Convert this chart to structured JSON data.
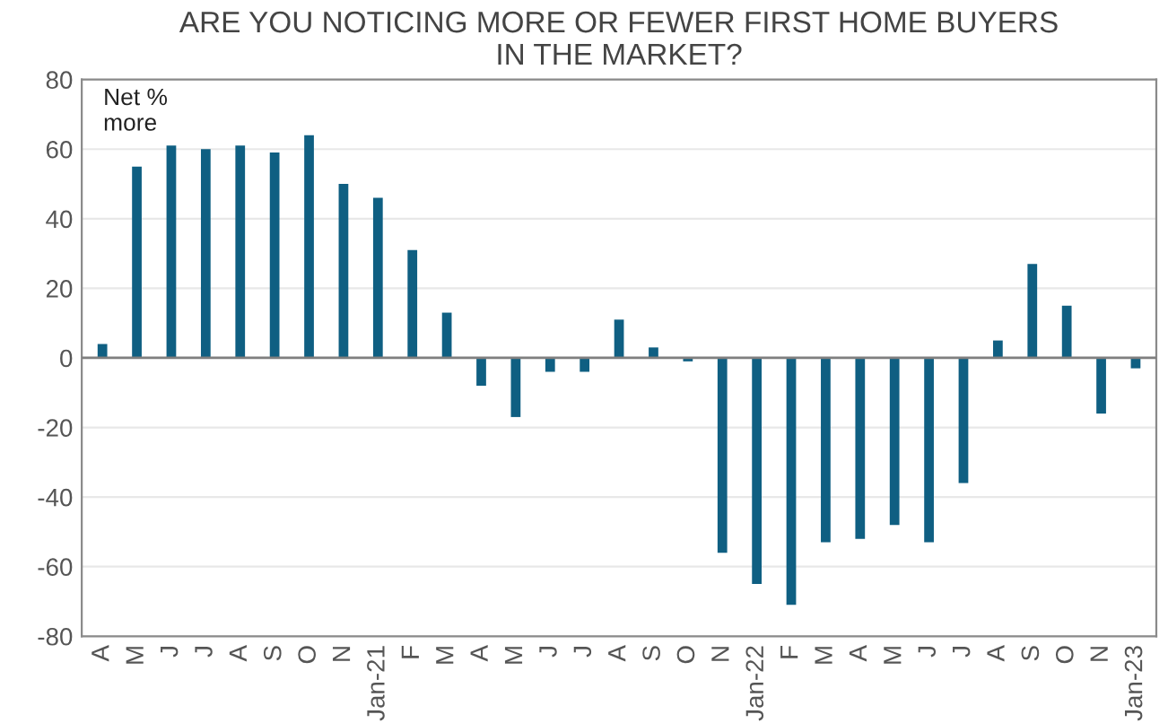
{
  "chart_data": {
    "type": "bar",
    "title": "ARE YOU NOTICING MORE OR FEWER FIRST HOME BUYERS\nIN THE MARKET?",
    "categories": [
      "A",
      "M",
      "J",
      "J",
      "A",
      "S",
      "O",
      "N",
      "Jan-21",
      "F",
      "M",
      "A",
      "M",
      "J",
      "J",
      "A",
      "S",
      "O",
      "N",
      "Jan-22",
      "F",
      "M",
      "A",
      "M",
      "J",
      "J",
      "A",
      "S",
      "O",
      "N",
      "Jan-23"
    ],
    "values": [
      4,
      55,
      61,
      60,
      61,
      59,
      64,
      50,
      46,
      31,
      13,
      -8,
      -17,
      -4,
      -4,
      11,
      3,
      -1,
      -56,
      -65,
      -71,
      -53,
      -52,
      -48,
      -53,
      -36,
      5,
      27,
      15,
      -16,
      -3
    ],
    "color": "#0f5f82",
    "ylim": [
      -80,
      80
    ],
    "yticks": [
      -80,
      -60,
      -40,
      -20,
      0,
      20,
      40,
      60,
      80
    ],
    "grid": "y",
    "annotations": [
      "Net %\nmore"
    ]
  }
}
